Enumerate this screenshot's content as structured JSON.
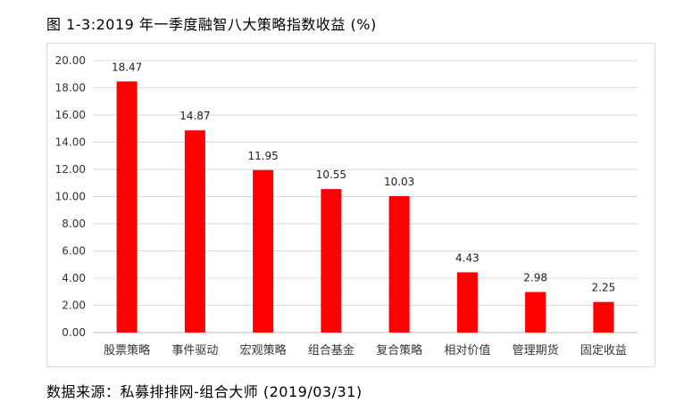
{
  "header": {
    "title": "图 1-3:2019 年一季度融智八大策略指数收益 (%)"
  },
  "footer": {
    "source": "数据来源：私募排排网-组合大师 (2019/03/31)"
  },
  "chart_data": {
    "type": "bar",
    "title": "图 1-3:2019 年一季度融智八大策略指数收益 (%)",
    "categories": [
      "股票策略",
      "事件驱动",
      "宏观策略",
      "组合基金",
      "复合策略",
      "相对价值",
      "管理期货",
      "固定收益"
    ],
    "values": [
      18.47,
      14.87,
      11.95,
      10.55,
      10.03,
      4.43,
      2.98,
      2.25
    ],
    "value_labels": [
      "18.47",
      "14.87",
      "11.95",
      "10.55",
      "10.03",
      "4.43",
      "2.98",
      "2.25"
    ],
    "yticks": [
      "0.00",
      "2.00",
      "4.00",
      "6.00",
      "8.00",
      "10.00",
      "12.00",
      "14.00",
      "16.00",
      "18.00",
      "20.00"
    ],
    "ylim": [
      0,
      20
    ],
    "xlabel": "",
    "ylabel": "",
    "grid": true,
    "legend": "none",
    "bar_color": "#ff0000",
    "grid_color": "#d9d9d9"
  }
}
